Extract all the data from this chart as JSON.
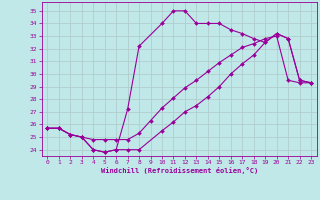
{
  "xlabel": "Windchill (Refroidissement éolien,°C)",
  "bg_color": "#c0e8e8",
  "line_color": "#990099",
  "grid_color": "#b0c8c8",
  "xlim": [
    -0.5,
    23.5
  ],
  "ylim": [
    23.5,
    35.7
  ],
  "yticks": [
    24,
    25,
    26,
    27,
    28,
    29,
    30,
    31,
    32,
    33,
    34,
    35
  ],
  "xticks": [
    0,
    1,
    2,
    3,
    4,
    5,
    6,
    7,
    8,
    9,
    10,
    11,
    12,
    13,
    14,
    15,
    16,
    17,
    18,
    19,
    20,
    21,
    22,
    23
  ],
  "line1_x": [
    0,
    1,
    2,
    3,
    4,
    5,
    6,
    7,
    8,
    9,
    10,
    11,
    12,
    13,
    14,
    15,
    16,
    17,
    18,
    19,
    20,
    21,
    22,
    23
  ],
  "line1_y": [
    25.7,
    25.7,
    25.2,
    25.0,
    24.8,
    24.8,
    24.8,
    24.8,
    25.3,
    26.3,
    27.3,
    28.1,
    28.9,
    29.5,
    30.2,
    30.9,
    31.5,
    32.1,
    32.4,
    32.8,
    33.0,
    29.5,
    29.3,
    29.3
  ],
  "line2_x": [
    0,
    1,
    2,
    3,
    4,
    5,
    6,
    7,
    8,
    10,
    11,
    12,
    13,
    14,
    15,
    16,
    17,
    18,
    19,
    20,
    21,
    22,
    23
  ],
  "line2_y": [
    25.7,
    25.7,
    25.2,
    25.0,
    24.0,
    23.8,
    24.0,
    24.0,
    24.0,
    25.5,
    26.2,
    27.0,
    27.5,
    28.2,
    29.0,
    30.0,
    30.8,
    31.5,
    32.5,
    33.2,
    32.8,
    29.5,
    29.3
  ],
  "line3_x": [
    0,
    1,
    2,
    3,
    4,
    5,
    6,
    7,
    8,
    10,
    11,
    12,
    13,
    14,
    15,
    16,
    17,
    18,
    19,
    20,
    21,
    22,
    23
  ],
  "line3_y": [
    25.7,
    25.7,
    25.2,
    25.0,
    24.0,
    23.8,
    24.0,
    27.2,
    32.2,
    34.0,
    35.0,
    35.0,
    34.0,
    34.0,
    34.0,
    33.5,
    33.2,
    32.8,
    32.5,
    33.2,
    32.8,
    29.5,
    29.3
  ]
}
